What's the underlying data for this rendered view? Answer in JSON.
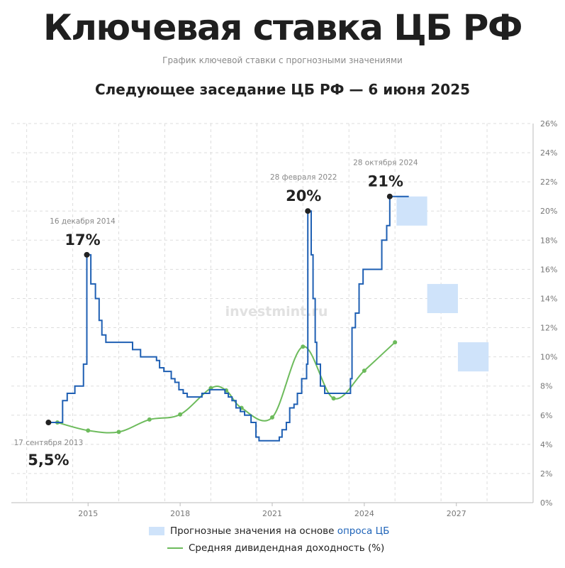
{
  "header": {
    "title": "Ключевая ставка ЦБ РФ",
    "subtitle": "График ключевой ставки с прогнозными значениями",
    "headline": "Следующее заседание ЦБ РФ — 6 июня 2025"
  },
  "watermark": "investmint.ru",
  "colors": {
    "key_rate": "#1e5fb3",
    "dividend": "#6dbb5c",
    "forecast": "#cfe3fa",
    "grid": "#dddddd",
    "marker": "#222222"
  },
  "legend": {
    "forecast_label_prefix": "Прогнозные значения на основе",
    "forecast_label_link": "опроса ЦБ",
    "dividend_label": "Средняя дивидендная доходность (%)"
  },
  "chart_data": {
    "type": "line",
    "xlim": [
      2012.5,
      2029.5
    ],
    "ylim": [
      0,
      26
    ],
    "x_ticks": [
      2015,
      2018,
      2021,
      2024,
      2027
    ],
    "y_ticks": [
      0,
      2,
      4,
      6,
      8,
      10,
      12,
      14,
      16,
      18,
      20,
      22,
      24,
      26
    ],
    "y_tick_labels": [
      "0%",
      "2%",
      "4%",
      "6%",
      "8%",
      "10%",
      "12%",
      "14%",
      "16%",
      "18%",
      "20%",
      "22%",
      "24%",
      "26%"
    ],
    "grid": true,
    "legend_position": "bottom",
    "series": [
      {
        "key": "key_rate",
        "style": "step",
        "points": [
          [
            2013.71,
            5.5
          ],
          [
            2014.17,
            5.5
          ],
          [
            2014.17,
            7.0
          ],
          [
            2014.32,
            7.0
          ],
          [
            2014.32,
            7.5
          ],
          [
            2014.57,
            7.5
          ],
          [
            2014.57,
            8.0
          ],
          [
            2014.85,
            8.0
          ],
          [
            2014.85,
            9.5
          ],
          [
            2014.96,
            9.5
          ],
          [
            2014.96,
            17.0
          ],
          [
            2015.09,
            17.0
          ],
          [
            2015.09,
            15.0
          ],
          [
            2015.24,
            15.0
          ],
          [
            2015.24,
            14.0
          ],
          [
            2015.36,
            14.0
          ],
          [
            2015.36,
            12.5
          ],
          [
            2015.45,
            12.5
          ],
          [
            2015.45,
            11.5
          ],
          [
            2015.58,
            11.5
          ],
          [
            2015.58,
            11.0
          ],
          [
            2016.45,
            11.0
          ],
          [
            2016.45,
            10.5
          ],
          [
            2016.71,
            10.5
          ],
          [
            2016.71,
            10.0
          ],
          [
            2017.23,
            10.0
          ],
          [
            2017.23,
            9.75
          ],
          [
            2017.33,
            9.75
          ],
          [
            2017.33,
            9.25
          ],
          [
            2017.47,
            9.25
          ],
          [
            2017.47,
            9.0
          ],
          [
            2017.71,
            9.0
          ],
          [
            2017.71,
            8.5
          ],
          [
            2017.83,
            8.5
          ],
          [
            2017.83,
            8.25
          ],
          [
            2017.96,
            8.25
          ],
          [
            2017.96,
            7.75
          ],
          [
            2018.1,
            7.75
          ],
          [
            2018.1,
            7.5
          ],
          [
            2018.23,
            7.5
          ],
          [
            2018.23,
            7.25
          ],
          [
            2018.71,
            7.25
          ],
          [
            2018.71,
            7.5
          ],
          [
            2018.96,
            7.5
          ],
          [
            2018.96,
            7.75
          ],
          [
            2019.46,
            7.75
          ],
          [
            2019.46,
            7.5
          ],
          [
            2019.57,
            7.5
          ],
          [
            2019.57,
            7.25
          ],
          [
            2019.69,
            7.25
          ],
          [
            2019.69,
            7.0
          ],
          [
            2019.82,
            7.0
          ],
          [
            2019.82,
            6.5
          ],
          [
            2019.96,
            6.5
          ],
          [
            2019.96,
            6.25
          ],
          [
            2020.1,
            6.25
          ],
          [
            2020.1,
            6.0
          ],
          [
            2020.31,
            6.0
          ],
          [
            2020.31,
            5.5
          ],
          [
            2020.47,
            5.5
          ],
          [
            2020.47,
            4.5
          ],
          [
            2020.57,
            4.5
          ],
          [
            2020.57,
            4.25
          ],
          [
            2021.23,
            4.25
          ],
          [
            2021.23,
            4.5
          ],
          [
            2021.32,
            4.5
          ],
          [
            2021.32,
            5.0
          ],
          [
            2021.46,
            5.0
          ],
          [
            2021.46,
            5.5
          ],
          [
            2021.57,
            5.5
          ],
          [
            2021.57,
            6.5
          ],
          [
            2021.71,
            6.5
          ],
          [
            2021.71,
            6.75
          ],
          [
            2021.82,
            6.75
          ],
          [
            2021.82,
            7.5
          ],
          [
            2021.96,
            7.5
          ],
          [
            2021.96,
            8.5
          ],
          [
            2022.12,
            8.5
          ],
          [
            2022.12,
            9.5
          ],
          [
            2022.16,
            9.5
          ],
          [
            2022.16,
            20.0
          ],
          [
            2022.27,
            20.0
          ],
          [
            2022.27,
            17.0
          ],
          [
            2022.33,
            17.0
          ],
          [
            2022.33,
            14.0
          ],
          [
            2022.4,
            14.0
          ],
          [
            2022.4,
            11.0
          ],
          [
            2022.45,
            11.0
          ],
          [
            2022.45,
            9.5
          ],
          [
            2022.57,
            9.5
          ],
          [
            2022.57,
            8.0
          ],
          [
            2022.71,
            8.0
          ],
          [
            2022.71,
            7.5
          ],
          [
            2023.55,
            7.5
          ],
          [
            2023.55,
            8.5
          ],
          [
            2023.6,
            8.5
          ],
          [
            2023.6,
            12.0
          ],
          [
            2023.71,
            12.0
          ],
          [
            2023.71,
            13.0
          ],
          [
            2023.83,
            13.0
          ],
          [
            2023.83,
            15.0
          ],
          [
            2023.96,
            15.0
          ],
          [
            2023.96,
            16.0
          ],
          [
            2024.57,
            16.0
          ],
          [
            2024.57,
            18.0
          ],
          [
            2024.73,
            18.0
          ],
          [
            2024.73,
            19.0
          ],
          [
            2024.83,
            19.0
          ],
          [
            2024.83,
            21.0
          ],
          [
            2025.45,
            21.0
          ]
        ]
      },
      {
        "key": "dividend",
        "style": "smooth",
        "points": [
          [
            2014.0,
            5.5
          ],
          [
            2015.0,
            4.95
          ],
          [
            2016.0,
            4.85
          ],
          [
            2017.0,
            5.7
          ],
          [
            2018.0,
            6.05
          ],
          [
            2019.0,
            7.85
          ],
          [
            2019.5,
            7.7
          ],
          [
            2020.0,
            6.5
          ],
          [
            2021.0,
            5.85
          ],
          [
            2022.0,
            10.7
          ],
          [
            2023.0,
            7.15
          ],
          [
            2024.0,
            9.05
          ],
          [
            2025.0,
            11.0
          ]
        ],
        "markers": [
          [
            2014.0,
            5.5
          ],
          [
            2015.0,
            4.95
          ],
          [
            2016.0,
            4.85
          ],
          [
            2017.0,
            5.7
          ],
          [
            2018.0,
            6.05
          ],
          [
            2019.0,
            7.85
          ],
          [
            2019.5,
            7.7
          ],
          [
            2020.0,
            6.5
          ],
          [
            2021.0,
            5.85
          ],
          [
            2022.0,
            10.7
          ],
          [
            2023.0,
            7.15
          ],
          [
            2024.0,
            9.05
          ],
          [
            2025.0,
            11.0
          ]
        ]
      }
    ],
    "forecast_boxes": [
      {
        "x0": 2025.05,
        "x1": 2026.05,
        "y0": 19.0,
        "y1": 21.0
      },
      {
        "x0": 2026.05,
        "x1": 2027.05,
        "y0": 13.0,
        "y1": 15.0
      },
      {
        "x0": 2027.05,
        "x1": 2028.05,
        "y0": 9.0,
        "y1": 11.0
      }
    ],
    "annotations": [
      {
        "x": 2013.71,
        "y": 5.5,
        "date": "17 сентября 2013",
        "value": "5,5%",
        "position": "below"
      },
      {
        "x": 2014.96,
        "y": 17.0,
        "date": "16 декабря 2014",
        "value": "17%",
        "position": "above"
      },
      {
        "x": 2022.16,
        "y": 20.0,
        "date": "28 февраля 2022",
        "value": "20%",
        "position": "above"
      },
      {
        "x": 2024.83,
        "y": 21.0,
        "date": "28 октября 2024",
        "value": "21%",
        "position": "above"
      }
    ]
  }
}
